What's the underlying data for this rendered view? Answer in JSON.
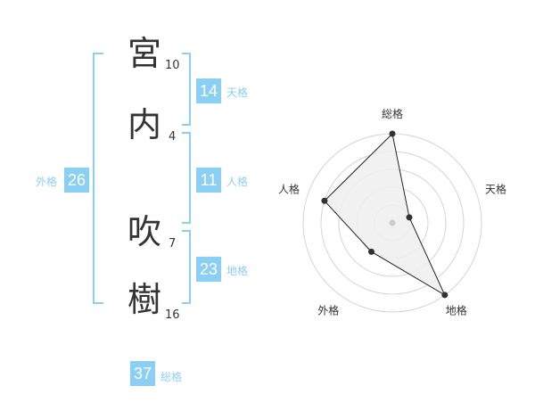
{
  "name": {
    "chars": [
      {
        "char": "宮",
        "strokes": "10"
      },
      {
        "char": "内",
        "strokes": "4"
      },
      {
        "char": "吹",
        "strokes": "7"
      },
      {
        "char": "樹",
        "strokes": "16"
      }
    ]
  },
  "kaku": {
    "tenkaku": {
      "label": "天格",
      "value": "14"
    },
    "jinkaku": {
      "label": "人格",
      "value": "11"
    },
    "chikaku": {
      "label": "地格",
      "value": "23"
    },
    "gaikaku": {
      "label": "外格",
      "value": "26"
    },
    "soukaku": {
      "label": "総格",
      "value": "37"
    }
  },
  "colors": {
    "accent": "#8ccff5"
  },
  "chart_data": {
    "type": "radar",
    "axes": [
      "総格",
      "天格",
      "地格",
      "外格",
      "人格"
    ],
    "values": [
      5,
      1,
      5,
      2,
      4
    ],
    "max": 5,
    "rings": 5
  }
}
